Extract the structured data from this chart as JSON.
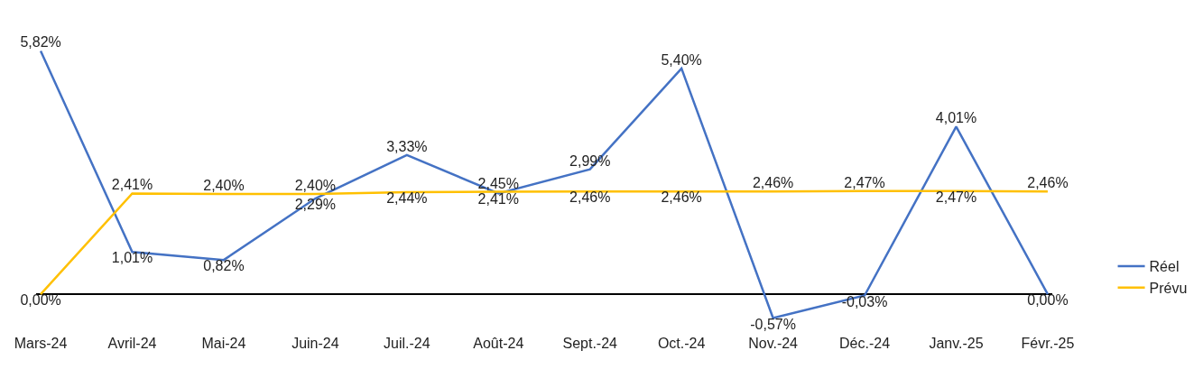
{
  "chart_data": {
    "type": "line",
    "categories": [
      "Mars-24",
      "Avril-24",
      "Mai-24",
      "Juin-24",
      "Juil.-24",
      "Août-24",
      "Sept.-24",
      "Oct.-24",
      "Nov.-24",
      "Déc.-24",
      "Janv.-25",
      "Févr.-25"
    ],
    "series": [
      {
        "name": "Réel",
        "color": "#4472c4",
        "values": [
          5.82,
          1.01,
          0.82,
          2.29,
          3.33,
          2.41,
          2.99,
          5.4,
          -0.57,
          -0.03,
          4.01,
          0.0
        ],
        "value_labels": [
          "5,82%",
          "1,01%",
          "0,82%",
          "2,29%",
          "3,33%",
          "2,41%",
          "2,99%",
          "5,40%",
          "-0,57%",
          "-0,03%",
          "4,01%",
          "0,00%"
        ]
      },
      {
        "name": "Prévu",
        "color": "#ffc000",
        "values": [
          0.0,
          2.41,
          2.4,
          2.4,
          2.44,
          2.45,
          2.46,
          2.46,
          2.46,
          2.47,
          2.47,
          2.46
        ],
        "value_labels": [
          "0,00%",
          "2,41%",
          "2,40%",
          "2,40%",
          "2,44%",
          "2,45%",
          "2,46%",
          "2,46%",
          "2,46%",
          "2,47%",
          "2,47%",
          "2,46%"
        ]
      }
    ],
    "legend": "right",
    "marker": "none",
    "line_style": "solid"
  }
}
